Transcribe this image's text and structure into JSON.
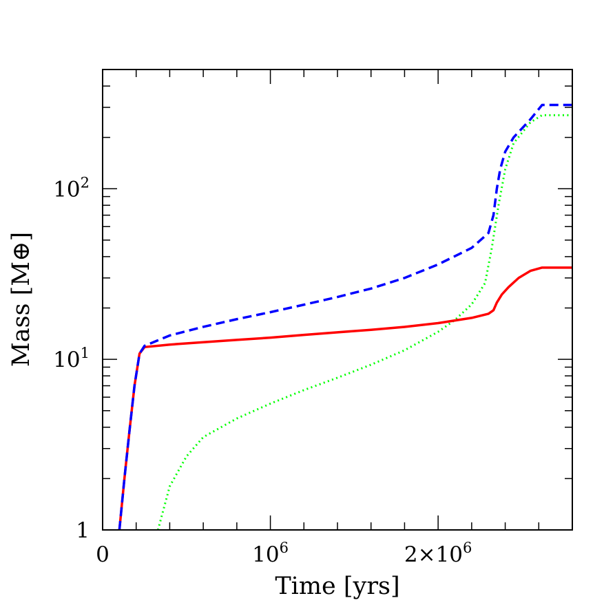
{
  "chart_data": {
    "type": "line",
    "xlabel": "Time [yrs]",
    "ylabel": "Mass [M⊕]",
    "xlim": [
      0,
      2800000
    ],
    "ylim": [
      1,
      500
    ],
    "yscale": "log",
    "x_ticks": [
      {
        "value": 0,
        "label": "0",
        "exp": ""
      },
      {
        "value": 1000000,
        "label": "10",
        "exp": "6"
      },
      {
        "value": 2000000,
        "label": "2×10",
        "exp": "6"
      }
    ],
    "y_ticks": [
      {
        "value": 1,
        "label": "1",
        "exp": ""
      },
      {
        "value": 10,
        "label": "10",
        "exp": "1"
      },
      {
        "value": 100,
        "label": "10",
        "exp": "2"
      }
    ],
    "series": [
      {
        "color": "#ff0000",
        "dash": "solid",
        "x": [
          100000,
          130000,
          160000,
          190000,
          220000,
          250000,
          400000,
          600000,
          800000,
          1000000,
          1200000,
          1400000,
          1600000,
          1800000,
          2000000,
          2200000,
          2300000,
          2330000,
          2350000,
          2380000,
          2420000,
          2480000,
          2550000,
          2620000,
          2800000
        ],
        "y": [
          1.0,
          2.0,
          3.8,
          7.0,
          10.8,
          11.8,
          12.2,
          12.6,
          13.0,
          13.4,
          13.9,
          14.4,
          14.9,
          15.5,
          16.3,
          17.5,
          18.5,
          19.4,
          21.5,
          24.0,
          26.5,
          30.0,
          33.0,
          34.5,
          34.5
        ]
      },
      {
        "color": "#0000ff",
        "dash": "dashed",
        "x": [
          100000,
          130000,
          160000,
          190000,
          220000,
          250000,
          400000,
          600000,
          800000,
          1000000,
          1200000,
          1400000,
          1600000,
          1800000,
          2000000,
          2200000,
          2300000,
          2330000,
          2350000,
          2370000,
          2400000,
          2450000,
          2550000,
          2620000,
          2800000
        ],
        "y": [
          1.0,
          2.0,
          3.8,
          7.0,
          10.8,
          12.0,
          13.8,
          15.5,
          17.2,
          18.9,
          20.9,
          23.2,
          26.0,
          30.0,
          36.0,
          45.0,
          55.0,
          70.0,
          100.0,
          130.0,
          165.0,
          200.0,
          255.0,
          310.0,
          310.0
        ]
      },
      {
        "color": "#00ff00",
        "dash": "dotted",
        "x": [
          330000,
          400000,
          500000,
          600000,
          800000,
          1000000,
          1200000,
          1400000,
          1600000,
          1800000,
          2000000,
          2100000,
          2200000,
          2280000,
          2320000,
          2360000,
          2400000,
          2450000,
          2550000,
          2620000,
          2800000
        ],
        "y": [
          1.0,
          1.8,
          2.7,
          3.5,
          4.5,
          5.5,
          6.6,
          7.8,
          9.3,
          11.3,
          14.5,
          17.0,
          21.0,
          28.0,
          45.0,
          80.0,
          130.0,
          185.0,
          245.0,
          270.0,
          270.0
        ]
      }
    ]
  }
}
